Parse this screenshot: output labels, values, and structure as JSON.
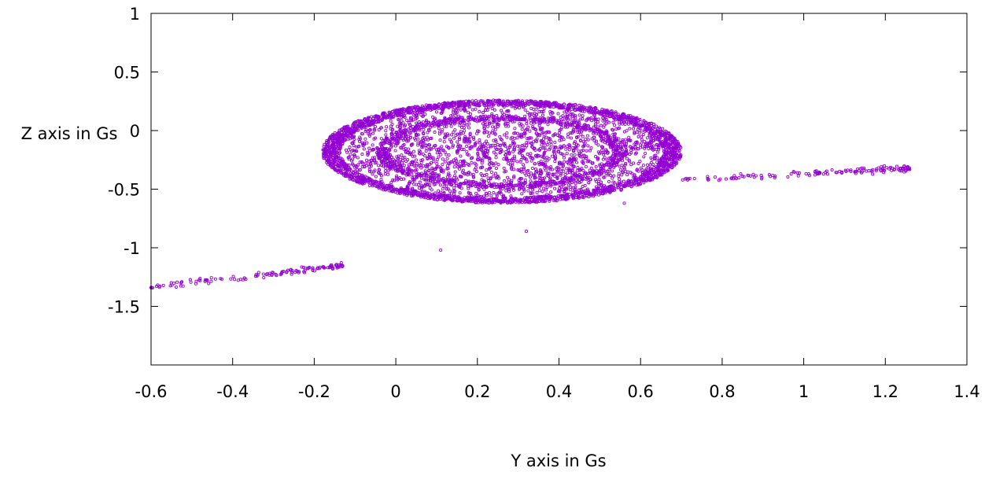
{
  "chart_data": {
    "type": "scatter",
    "title": "",
    "xlabel": "Y axis in Gs",
    "ylabel": "Z axis in Gs",
    "xlim": [
      -0.6,
      1.4
    ],
    "ylim": [
      -2.0,
      1.0
    ],
    "x_ticks": [
      {
        "value": -0.6,
        "label": "-0.6"
      },
      {
        "value": -0.4,
        "label": "-0.4"
      },
      {
        "value": -0.2,
        "label": "-0.2"
      },
      {
        "value": 0,
        "label": "0"
      },
      {
        "value": 0.2,
        "label": "0.2"
      },
      {
        "value": 0.4,
        "label": "0.4"
      },
      {
        "value": 0.6,
        "label": "0.6"
      },
      {
        "value": 0.8,
        "label": "0.8"
      },
      {
        "value": 1.0,
        "label": "1"
      },
      {
        "value": 1.2,
        "label": "1.2"
      },
      {
        "value": 1.4,
        "label": "1.4"
      }
    ],
    "y_ticks": [
      {
        "value": 1.0,
        "label": "1"
      },
      {
        "value": 0.5,
        "label": "0.5"
      },
      {
        "value": 0,
        "label": "0"
      },
      {
        "value": -0.5,
        "label": "-0.5"
      },
      {
        "value": -1.0,
        "label": "-1"
      },
      {
        "value": -1.5,
        "label": "-1.5"
      }
    ],
    "grid": false,
    "legend": "none",
    "series": [
      {
        "color": "#9400d3",
        "marker": "open-circle",
        "clusters": [
          {
            "shape": "ellipse",
            "center": [
              0.26,
              -0.18
            ],
            "half_width": 0.44,
            "half_height": 0.44,
            "points": 5200
          },
          {
            "shape": "line",
            "from": [
              0.7,
              -0.42
            ],
            "to": [
              1.26,
              -0.32
            ],
            "points": 140
          },
          {
            "shape": "line",
            "from": [
              -0.6,
              -1.34
            ],
            "to": [
              -0.13,
              -1.15
            ],
            "points": 130
          }
        ],
        "outliers": [
          [
            0.11,
            -1.02
          ],
          [
            0.32,
            -0.86
          ],
          [
            -0.6,
            -1.34
          ],
          [
            0.56,
            -0.62
          ]
        ]
      }
    ]
  }
}
